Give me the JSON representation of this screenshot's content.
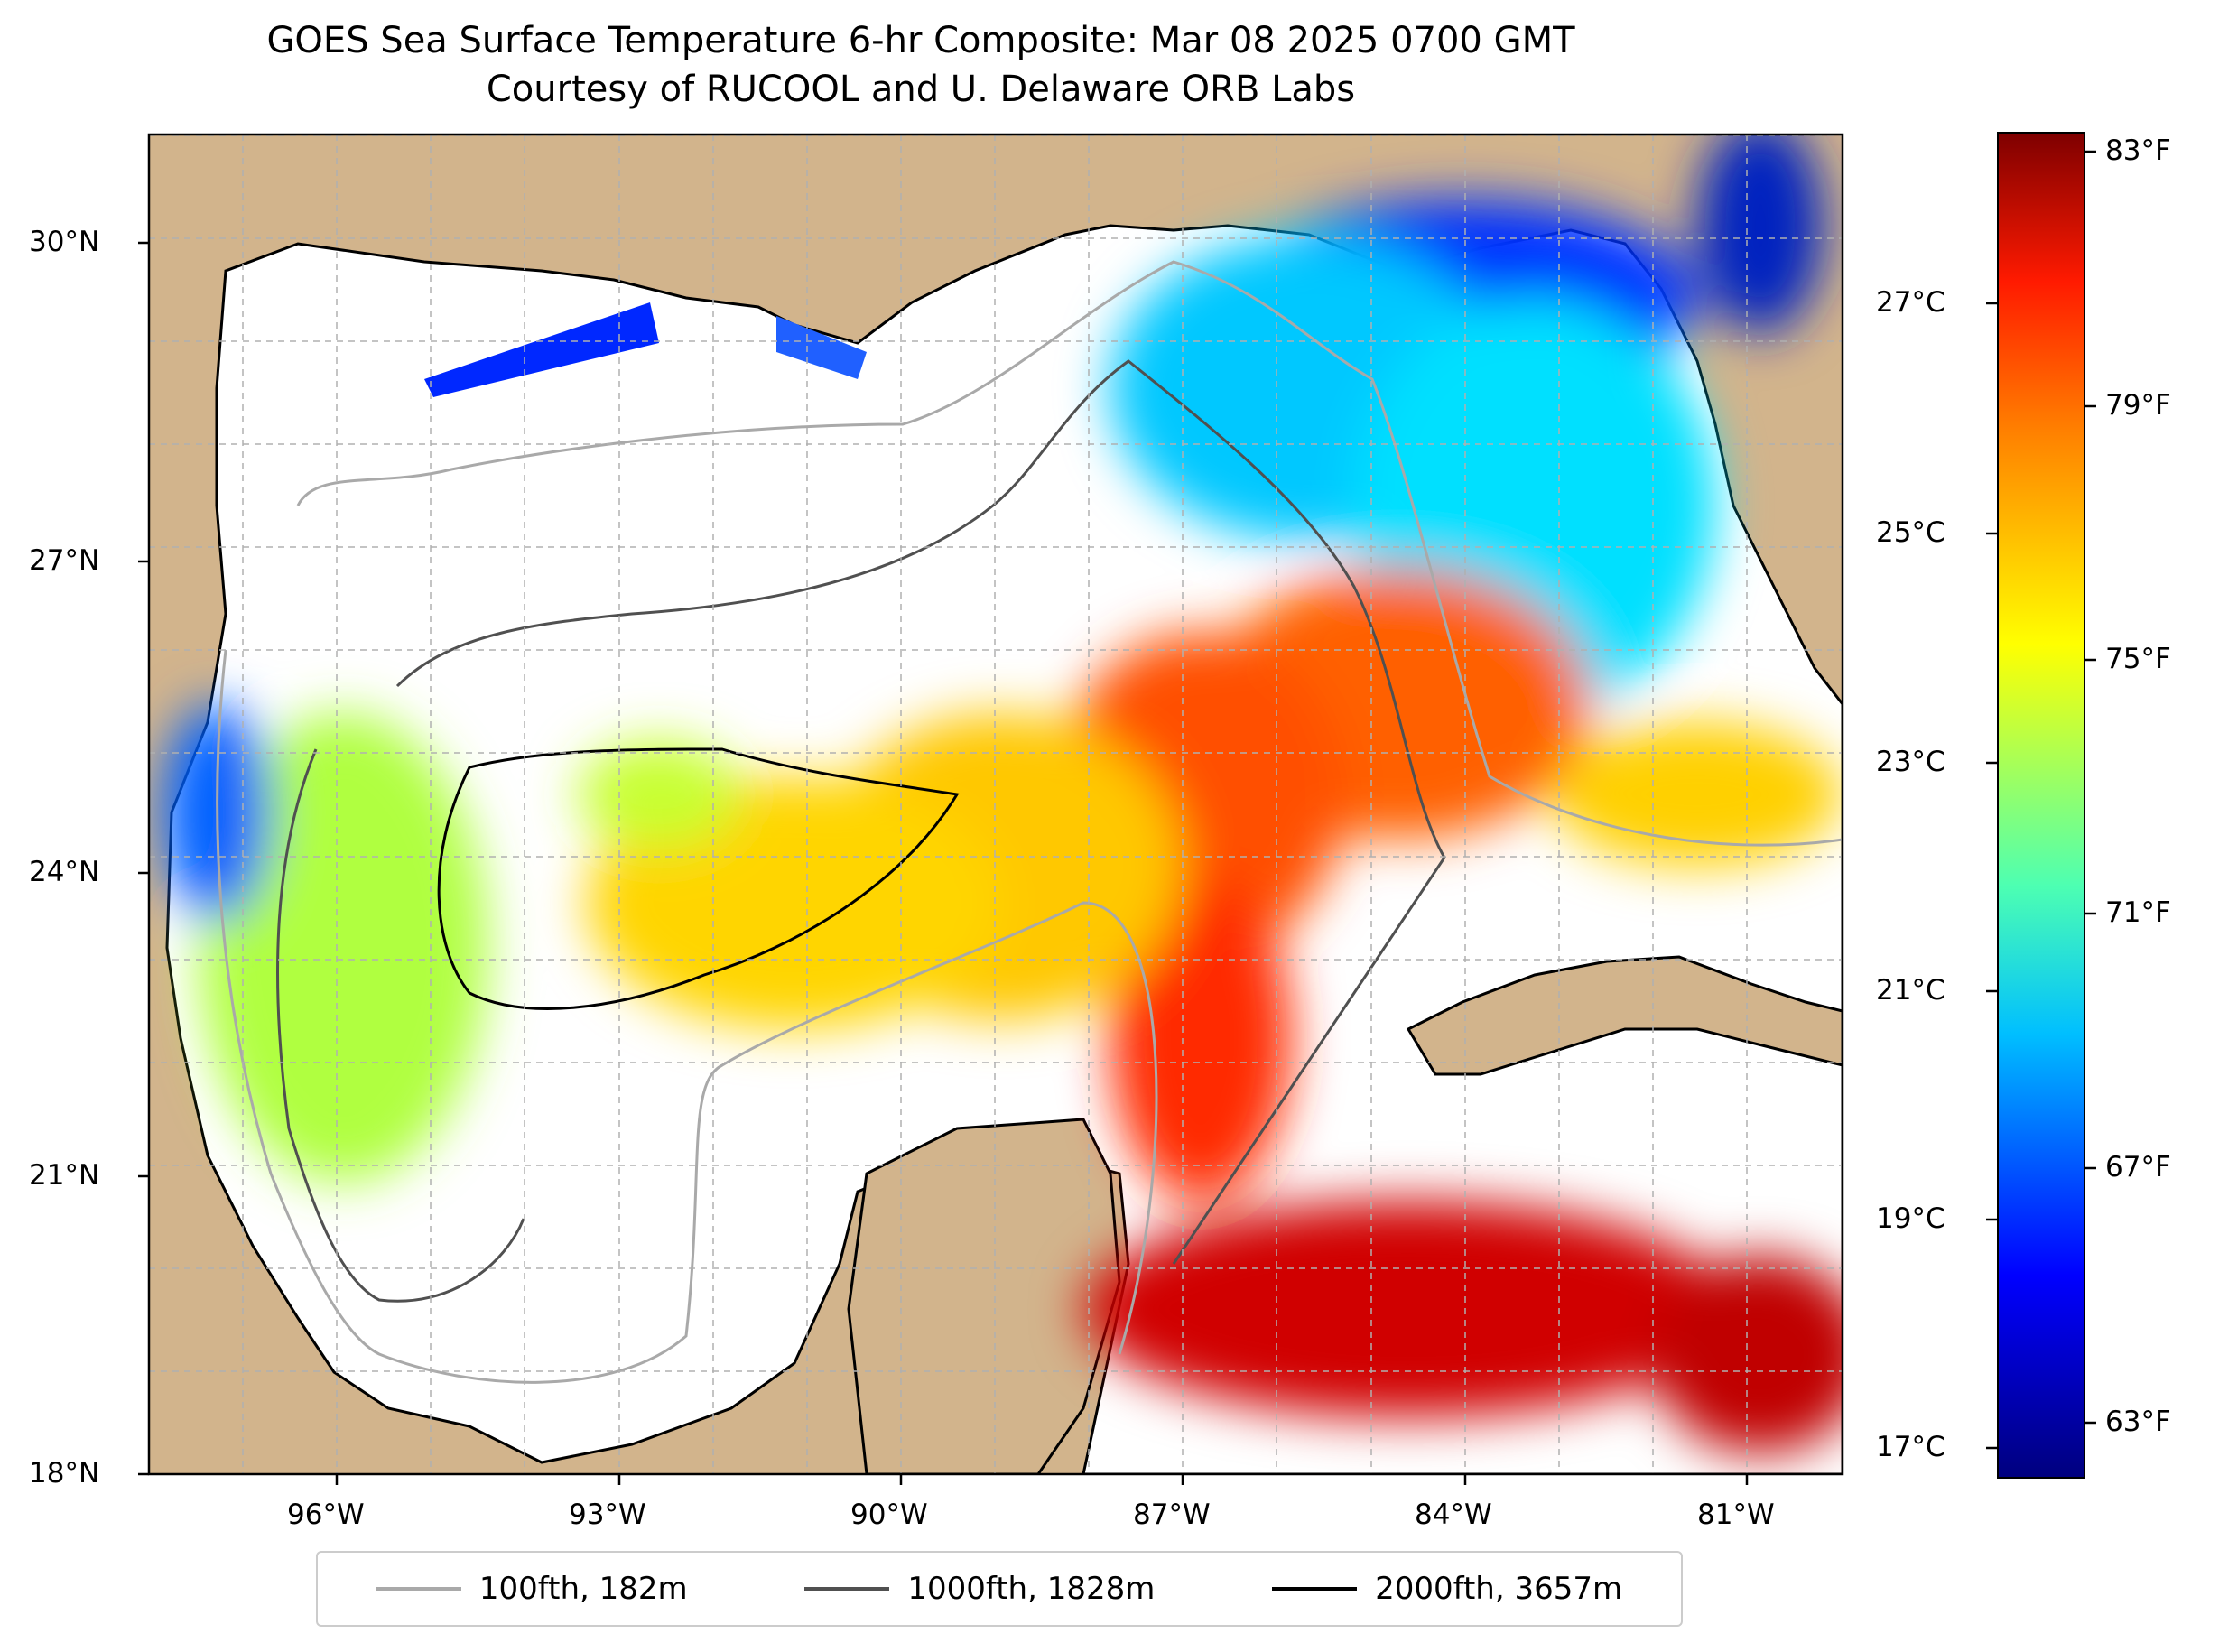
{
  "title": {
    "line1": "GOES Sea Surface Temperature 6-hr Composite: Mar 08 2025 0700 GMT",
    "line2": "Courtesy of RUCOOL and U. Delaware ORB Labs"
  },
  "map": {
    "lon_range": [
      -98,
      -80
    ],
    "lat_range": [
      18,
      31
    ],
    "lon_ticks": [
      "96°W",
      "93°W",
      "90°W",
      "87°W",
      "84°W",
      "81°W"
    ],
    "lat_ticks": [
      "30°N",
      "27°N",
      "24°N",
      "21°N",
      "18°N"
    ],
    "colors": {
      "land": "#d2b48c",
      "no_data": "#ffffff",
      "coast": "#000000",
      "grid": "#b0b0b0"
    }
  },
  "colorbar": {
    "celsius_labels": [
      "27°C",
      "25°C",
      "23°C",
      "21°C",
      "19°C",
      "17°C"
    ],
    "fahrenheit_labels": [
      "83°F",
      "79°F",
      "75°F",
      "71°F",
      "67°F",
      "63°F"
    ],
    "colormap": "jet"
  },
  "legend": {
    "items": [
      {
        "label": "100fth, 182m",
        "color": "#a9a9a9"
      },
      {
        "label": "1000fth, 1828m",
        "color": "#505050"
      },
      {
        "label": "2000fth, 3657m",
        "color": "#000000"
      }
    ]
  }
}
